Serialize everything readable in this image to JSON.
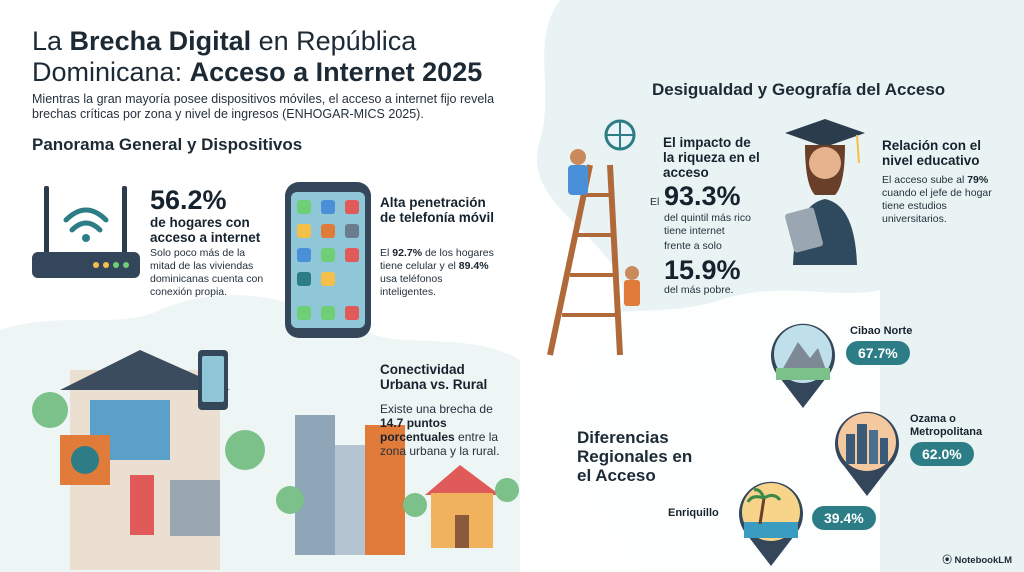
{
  "title": {
    "part1": "La ",
    "bold1": "Brecha Digital",
    "part2": " en República Dominicana: ",
    "bold2": "Acceso a Internet 2025"
  },
  "intro": "Mientras la gran mayoría posee dispositivos móviles, el acceso a internet fijo revela brechas críticas por zona y nivel de ingresos (ENHOGAR-MICS 2025).",
  "panorama": {
    "heading": "Panorama General y Dispositivos",
    "households": {
      "value": "56.2%",
      "label": "de hogares con acceso a internet",
      "desc": "Solo poco más de la mitad de las viviendas dominicanas cuenta con conexión propia."
    },
    "mobile": {
      "heading": "Alta penetración de telefonía móvil",
      "t1": "El ",
      "b1": "92.7%",
      "t2": " de los hogares tiene celular y el ",
      "b2": "89.4%",
      "t3": " usa teléfonos inteligentes."
    },
    "urban": {
      "heading": "Conectividad Urbana vs. Rural",
      "t1": "Existe una brecha de ",
      "b1": "14.7 puntos porcentuales",
      "t2": " entre la zona urbana y la rural."
    }
  },
  "inequality": {
    "heading": "Desigualdad y Geografía del Acceso",
    "wealth": {
      "heading": "El impacto de la riqueza en el acceso",
      "prefix": "El",
      "rich_value": "93.3%",
      "rich_label": "del quintil más rico tiene internet",
      "middle": "frente a solo",
      "poor_value": "15.9%",
      "poor_label": "del más pobre."
    },
    "education": {
      "heading": "Relación con el nivel educativo",
      "t1": "El acceso sube al ",
      "b1": "79%",
      "t2": " cuando el jefe de hogar tiene estudios universitarios."
    }
  },
  "regional": {
    "heading": "Diferencias Regionales en el Acceso",
    "regions": [
      {
        "name": "Cibao Norte",
        "value": "67.7%"
      },
      {
        "name": "Ozama o Metropolitana",
        "value": "62.0%"
      },
      {
        "name": "Enriquillo",
        "value": "39.4%"
      }
    ]
  },
  "brand": "NotebookLM",
  "colors": {
    "accent": "#2d7d87",
    "bg_blob": "#e6f1f2",
    "dark": "#1c2a36"
  }
}
